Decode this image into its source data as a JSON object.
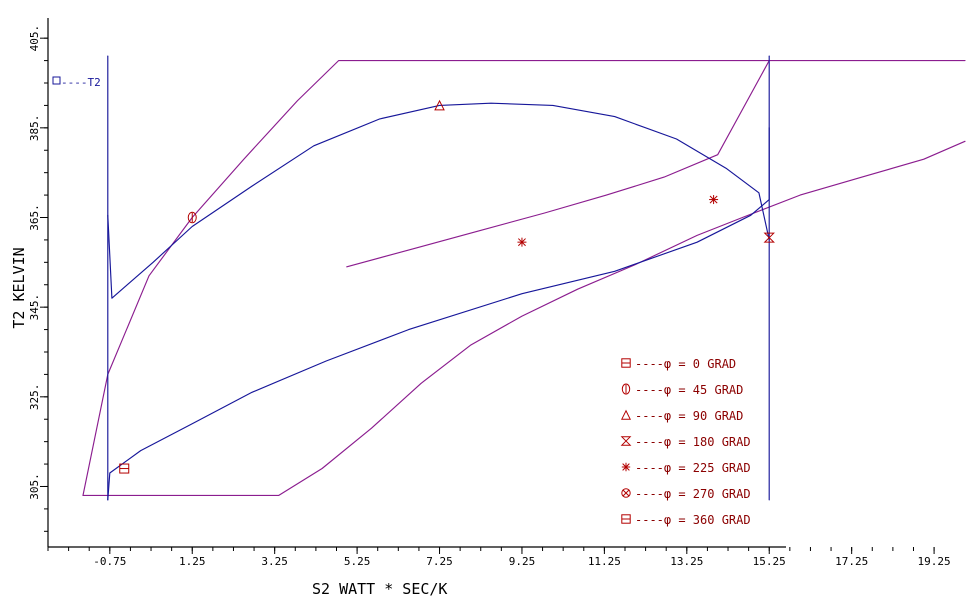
{
  "chart_data": {
    "type": "line",
    "title": "",
    "xlabel": "S2      WATT * SEC/K",
    "ylabel": "T2 KELVIN",
    "xlim": [
      -2.25,
      20.0
    ],
    "ylim": [
      291.5,
      409.5
    ],
    "x_ticks": [
      "-0.75",
      "1.25",
      "3.25",
      "5.25",
      "7.25",
      "9.25",
      "11.25",
      "13.25",
      "15.25",
      "17.25",
      "19.25"
    ],
    "y_ticks": [
      "305.",
      "325.",
      "345.",
      "365.",
      "385.",
      "405."
    ],
    "grid": false,
    "legend_position": "bottom-right",
    "colors": {
      "axis": "#000000",
      "purple": "#8b1d8f",
      "blue": "#17179a",
      "marker": "#b30000",
      "text": "#8b0000"
    },
    "top_label": "----T2",
    "series": [
      {
        "name": "",
        "color": "#8b1d8f",
        "points": [
          [
            -1.4,
            303.0
          ],
          [
            3.35,
            303.0
          ],
          [
            4.4,
            309.0
          ],
          [
            5.6,
            318.0
          ],
          [
            6.8,
            328.0
          ],
          [
            8.0,
            336.5
          ],
          [
            9.25,
            343.0
          ],
          [
            10.6,
            349.0
          ],
          [
            12.0,
            354.5
          ],
          [
            13.5,
            361.0
          ],
          [
            14.6,
            365.0
          ],
          [
            16.0,
            370.0
          ],
          [
            17.5,
            374.0
          ],
          [
            19.0,
            378.0
          ],
          [
            20.0,
            382.0
          ]
        ]
      },
      {
        "name": "",
        "color": "#8b1d8f",
        "points": [
          [
            -1.4,
            303.0
          ],
          [
            -0.8,
            330.0
          ],
          [
            0.2,
            352.0
          ],
          [
            1.25,
            365.0
          ],
          [
            2.5,
            378.0
          ],
          [
            3.8,
            391.0
          ],
          [
            4.8,
            400.0
          ],
          [
            20.0,
            400.0
          ],
          [
            15.25,
            400.0
          ],
          [
            14.0,
            379.0
          ],
          [
            12.7,
            374.0
          ],
          [
            11.3,
            370.0
          ],
          [
            9.8,
            366.0
          ],
          [
            8.2,
            362.0
          ],
          [
            6.6,
            358.0
          ],
          [
            5.0,
            354.0
          ]
        ]
      },
      {
        "name": "",
        "color": "#17179a",
        "points": [
          [
            -0.8,
            302.0
          ],
          [
            -0.75,
            308.0
          ],
          [
            0.0,
            313.0
          ],
          [
            1.25,
            319.0
          ],
          [
            2.7,
            326.0
          ],
          [
            4.5,
            333.0
          ],
          [
            6.5,
            340.0
          ],
          [
            9.25,
            348.0
          ],
          [
            11.5,
            353.0
          ],
          [
            13.5,
            359.5
          ],
          [
            14.8,
            365.5
          ],
          [
            15.25,
            369.0
          ],
          [
            15.25,
            385.0
          ]
        ]
      },
      {
        "name": "",
        "color": "#17179a",
        "points": [
          [
            -0.8,
            365.5
          ],
          [
            -0.7,
            347.0
          ],
          [
            0.3,
            355.0
          ],
          [
            1.25,
            363.0
          ],
          [
            2.7,
            372.0
          ],
          [
            4.2,
            381.0
          ],
          [
            5.8,
            387.0
          ],
          [
            7.25,
            390.0
          ],
          [
            8.5,
            390.5
          ],
          [
            10.0,
            390.0
          ],
          [
            11.5,
            387.5
          ],
          [
            13.0,
            382.5
          ],
          [
            14.2,
            376.0
          ],
          [
            15.0,
            370.5
          ],
          [
            15.25,
            360.0
          ]
        ]
      },
      {
        "name": "",
        "color": "#17179a",
        "points": [
          [
            -0.8,
            401.0
          ],
          [
            -0.8,
            302.0
          ]
        ]
      },
      {
        "name": "",
        "color": "#17179a",
        "points": [
          [
            15.25,
            401.0
          ],
          [
            15.25,
            302.0
          ]
        ]
      }
    ],
    "markers": [
      {
        "x": -0.4,
        "y": 309.0,
        "shape": "square"
      },
      {
        "x": 1.25,
        "y": 365.0,
        "shape": "circle"
      },
      {
        "x": 7.25,
        "y": 390.0,
        "shape": "triangle"
      },
      {
        "x": 15.25,
        "y": 360.5,
        "shape": "hourglass"
      },
      {
        "x": 9.25,
        "y": 359.5,
        "shape": "star"
      },
      {
        "x": 13.9,
        "y": 369.0,
        "shape": "star"
      }
    ],
    "legend": [
      {
        "symbol": "square",
        "text": "----φ =   0 GRAD"
      },
      {
        "symbol": "circle",
        "text": "----φ =  45 GRAD"
      },
      {
        "symbol": "triangle",
        "text": "----φ =  90 GRAD"
      },
      {
        "symbol": "hourglass",
        "text": "----φ = 180 GRAD"
      },
      {
        "symbol": "star",
        "text": "----φ = 225 GRAD"
      },
      {
        "symbol": "circle-cross",
        "text": "----φ = 270 GRAD"
      },
      {
        "symbol": "square",
        "text": "----φ = 360 GRAD"
      }
    ]
  }
}
